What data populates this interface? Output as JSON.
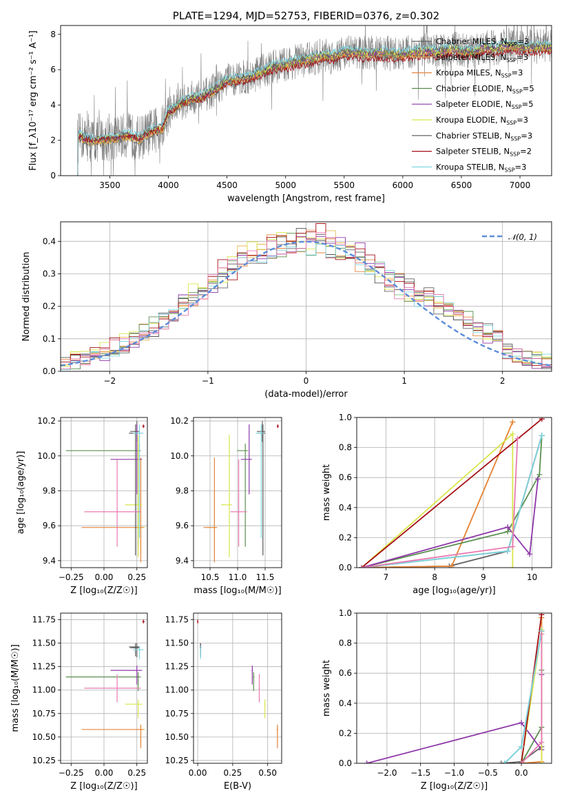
{
  "chart_data": [
    {
      "id": "spectrum",
      "type": "line",
      "title": "PLATE=1294, MJD=52753, FIBERID=0376, z=0.302",
      "xlabel": "wavelength [Angstrom, rest frame]",
      "ylabel": "Flux [f_λ10⁻¹⁷ erg cm⁻² s⁻¹ A⁻¹]",
      "xlim": [
        3080,
        7270
      ],
      "ylim": [
        0,
        8.5
      ],
      "xticks": [
        3500,
        4000,
        4500,
        5000,
        5500,
        6000,
        6500,
        7000
      ],
      "yticks": [
        0,
        2,
        4,
        6,
        8
      ],
      "grid": false,
      "legend_position": "right",
      "data_shape": {
        "wl": [
          3200,
          3230,
          3280,
          3350,
          3450,
          3550,
          3650,
          3750,
          3850,
          3950,
          4000,
          4100,
          4200,
          4300,
          4400,
          4500,
          4600,
          4700,
          4800,
          4900,
          5000,
          5100,
          5200,
          5300,
          5400,
          5500,
          5600,
          5700,
          5800,
          5900,
          6000,
          6100,
          6200,
          6300,
          6400,
          6500,
          6600,
          6700,
          6800,
          6900,
          7000,
          7100,
          7200,
          7270
        ],
        "flux": [
          0,
          2.3,
          2.1,
          2.0,
          2.05,
          2.15,
          2.3,
          2.1,
          2.5,
          2.7,
          3.6,
          4.1,
          4.4,
          4.5,
          4.9,
          5.4,
          5.5,
          5.6,
          5.9,
          6.2,
          6.3,
          6.5,
          6.6,
          6.8,
          6.8,
          7.0,
          7.0,
          6.9,
          7.0,
          6.9,
          6.9,
          7.0,
          7.1,
          7.0,
          7.2,
          7.1,
          7.0,
          7.3,
          7.2,
          7.4,
          7.3,
          7.3,
          7.3,
          7.3
        ]
      },
      "legend": [
        {
          "label": "Chabrier MILES, N",
          "sub": "SSP",
          "tail": "=3",
          "color": "#636363"
        },
        {
          "label": "Salpeter MILES, N",
          "sub": "SSP",
          "tail": "=3",
          "color": "#e7ba52"
        },
        {
          "label": "Kroupa MILES, N",
          "sub": "SSP",
          "tail": "=3",
          "color": "#e6853c"
        },
        {
          "label": "Chabrier ELODIE, N",
          "sub": "SSP",
          "tail": "=5",
          "color": "#5a8f4e"
        },
        {
          "label": "Salpeter ELODIE, N",
          "sub": "SSP",
          "tail": "=5",
          "color": "#8e36a8"
        },
        {
          "label": "Kroupa ELODIE, N",
          "sub": "SSP",
          "tail": "=3",
          "color": "#d8e64a"
        },
        {
          "label": "Chabrier STELIB, N",
          "sub": "SSP",
          "tail": "=3",
          "color": "#555555"
        },
        {
          "label": "Salpeter STELIB, N",
          "sub": "SSP",
          "tail": "=2",
          "color": "#a50f15"
        },
        {
          "label": "Kroupa STELIB, N",
          "sub": "SSP",
          "tail": "=3",
          "color": "#7fd7e0"
        }
      ]
    },
    {
      "id": "residuals",
      "type": "line",
      "xlabel": "(data-model)/error",
      "ylabel": "Normed distribution",
      "xlim": [
        -2.5,
        2.5
      ],
      "ylim": [
        0,
        0.46
      ],
      "xticks": [
        -2,
        -1,
        0,
        1,
        2
      ],
      "yticks": [
        0.0,
        0.1,
        0.2,
        0.3,
        0.4
      ],
      "grid": true,
      "legend_position": "top-right",
      "legend": [
        {
          "label": "𝒩(0, 1)",
          "color": "#5b8bd9",
          "style": "dashed"
        }
      ]
    },
    {
      "id": "age-vs-Z",
      "type": "scatter",
      "xlabel": "Z [log₁₀(Z/Z☉)]",
      "ylabel": "age  [log₁₀(age/yr)]",
      "xlim": [
        -0.33,
        0.33
      ],
      "ylim": [
        9.36,
        10.22
      ],
      "xticks": [
        -0.25,
        0.0,
        0.25
      ],
      "yticks": [
        9.4,
        9.6,
        9.8,
        10.0,
        10.2
      ],
      "grid": true
    },
    {
      "id": "age-vs-mass",
      "type": "scatter",
      "xlabel": "mass [log₁₀(M/M☉)]",
      "xlim": [
        10.2,
        11.8
      ],
      "ylim": [
        9.36,
        10.22
      ],
      "xticks": [
        10.5,
        11.0,
        11.5
      ],
      "yticks": [
        9.4,
        9.6,
        9.8,
        10.0,
        10.2
      ],
      "grid": true
    },
    {
      "id": "weight-vs-age",
      "type": "line",
      "xlabel": "age  [log₁₀(age/yr)]",
      "ylabel": "mass weight",
      "xlim": [
        6.4,
        10.4
      ],
      "ylim": [
        0,
        1.0
      ],
      "xticks": [
        7,
        8,
        9,
        10
      ],
      "yticks": [
        0.0,
        0.2,
        0.4,
        0.6,
        0.8,
        1.0
      ],
      "grid": true
    },
    {
      "id": "mass-vs-Z",
      "type": "scatter",
      "xlabel": "Z [log₁₀(Z/Z☉)]",
      "ylabel": "mass [log₁₀(M/M☉)]",
      "xlim": [
        -0.33,
        0.33
      ],
      "ylim": [
        10.22,
        11.82
      ],
      "xticks": [
        -0.25,
        0.0,
        0.25
      ],
      "yticks": [
        10.25,
        10.5,
        10.75,
        11.0,
        11.25,
        11.5,
        11.75
      ],
      "grid": true
    },
    {
      "id": "mass-vs-EBV",
      "type": "scatter",
      "xlabel": "E(B-V)",
      "xlim": [
        -0.03,
        0.6
      ],
      "ylim": [
        10.22,
        11.82
      ],
      "xticks": [
        0.0,
        0.25,
        0.5
      ],
      "yticks": [
        10.25,
        10.5,
        10.75,
        11.0,
        11.25,
        11.5,
        11.75
      ],
      "grid": true
    },
    {
      "id": "weight-vs-Z",
      "type": "line",
      "xlabel": "Z [log₁₀(Z/Z☉)]",
      "ylabel": "mass weight",
      "xlim": [
        -2.45,
        0.45
      ],
      "ylim": [
        0,
        1.0
      ],
      "xticks": [
        -2.0,
        -1.5,
        -1.0,
        -0.5,
        0.0
      ],
      "yticks": [
        0.0,
        0.2,
        0.4,
        0.6,
        0.8,
        1.0
      ],
      "grid": true
    }
  ],
  "models": [
    {
      "color": "#636363",
      "Z": 0.25,
      "Zerr": [
        0.05,
        0.02
      ],
      "age": 10.14,
      "ageerr": [
        0.06,
        0.06
      ],
      "mass": 11.45,
      "masserr": [
        0.1,
        0.05
      ],
      "ebv": 0.02,
      "ages": [
        6.5,
        8.3,
        9.5,
        10.2
      ],
      "weights": [
        0.0,
        0.01,
        0.11,
        0.88
      ],
      "Zs": [
        -0.3,
        0.0,
        0.3,
        0.3
      ]
    },
    {
      "color": "#e7ba52",
      "Z": 0.28,
      "Zerr": [
        0.05,
        0.03
      ],
      "age": 9.59,
      "ageerr": [
        0.15,
        0.2
      ],
      "mass": 10.58,
      "masserr": [
        0.15,
        0.05
      ],
      "ebv": 0.57,
      "ages": [
        6.5,
        8.35,
        9.6
      ],
      "weights": [
        0.0,
        0.01,
        0.97
      ],
      "Zs": [
        0.0,
        0.3,
        0.3
      ]
    },
    {
      "color": "#e6853c",
      "Z": 0.28,
      "Zerr": [
        0.45,
        0.02
      ],
      "age": 9.59,
      "ageerr": [
        0.2,
        0.4
      ],
      "mass": 10.58,
      "masserr": [
        0.2,
        0.05
      ],
      "ebv": 0.57,
      "ages": [
        6.5,
        8.35,
        9.6
      ],
      "weights": [
        0.0,
        0.01,
        0.97
      ],
      "Zs": [
        0.0,
        0.3,
        0.3
      ]
    },
    {
      "color": "#5a8f4e",
      "Z": 0.26,
      "Zerr": [
        0.55,
        0.02
      ],
      "age": 10.03,
      "ageerr": [
        0.55,
        0.04
      ],
      "mass": 11.14,
      "masserr": [
        0.15,
        0.05
      ],
      "ebv": 0.4,
      "ages": [
        6.5,
        9.5,
        10.15,
        10.2
      ],
      "weights": [
        0.0,
        0.24,
        0.62,
        0.88
      ],
      "Zs": [
        0.0,
        0.3,
        0.3,
        0.3
      ]
    },
    {
      "color": "#8e36a8",
      "Z": 0.25,
      "Zerr": [
        0.2,
        0.04
      ],
      "age": 9.98,
      "ageerr": [
        0.2,
        0.2
      ],
      "mass": 11.21,
      "masserr": [
        0.15,
        0.05
      ],
      "ebv": 0.39,
      "ages": [
        6.5,
        9.5,
        9.95,
        10.12
      ],
      "weights": [
        0.0,
        0.27,
        0.09,
        0.59
      ],
      "Zs": [
        -2.3,
        0.0,
        0.3,
        0.3
      ]
    },
    {
      "color": "#d8e64a",
      "Z": 0.26,
      "Zerr": [
        0.1,
        0.03
      ],
      "age": 9.72,
      "ageerr": [
        0.3,
        0.4
      ],
      "mass": 10.85,
      "masserr": [
        0.15,
        0.05
      ],
      "ebv": 0.48,
      "ages": [
        6.5,
        9.6,
        9.6
      ],
      "weights": [
        0.0,
        0.89,
        0.0
      ],
      "Zs": [
        0.0,
        0.3,
        0.3
      ]
    },
    {
      "color": "#555555",
      "Z": 0.24,
      "Zerr": [
        0.05,
        0.03
      ],
      "age": 10.13,
      "ageerr": [
        0.7,
        0.05
      ],
      "mass": 11.46,
      "masserr": [
        0.1,
        0.04
      ],
      "ebv": 0.02,
      "ages": [
        6.5,
        9.5,
        10.2
      ],
      "weights": [
        0.0,
        0.11,
        0.88
      ],
      "Zs": [
        -0.25,
        0.0,
        0.3
      ]
    },
    {
      "color": "#a50f15",
      "Z": 0.3,
      "Zerr": [
        0.01,
        0.01
      ],
      "age": 10.17,
      "ageerr": [
        0.01,
        0.01
      ],
      "mass": 11.73,
      "masserr": [
        0.02,
        0.02
      ],
      "ebv": 0.0,
      "ages": [
        6.5,
        10.2
      ],
      "weights": [
        0.0,
        0.99
      ],
      "Zs": [
        0.0,
        0.3
      ]
    },
    {
      "color": "#7fd7e0",
      "Z": 0.27,
      "Zerr": [
        0.05,
        0.03
      ],
      "age": 10.13,
      "ageerr": [
        0.6,
        0.05
      ],
      "mass": 11.43,
      "masserr": [
        0.1,
        0.04
      ],
      "ebv": 0.02,
      "ages": [
        6.5,
        9.5,
        10.2
      ],
      "weights": [
        0.0,
        0.11,
        0.88
      ],
      "Zs": [
        -0.25,
        0.0,
        0.3
      ]
    },
    {
      "color": "#e879b1",
      "Z": 0.1,
      "Zerr": [
        0.25,
        0.18
      ],
      "age": 9.68,
      "ageerr": [
        0.2,
        0.3
      ],
      "mass": 11.02,
      "masserr": [
        0.15,
        0.15
      ],
      "ebv": 0.44,
      "ages": [
        6.5,
        9.6,
        9.7
      ],
      "weights": [
        0.0,
        0.14,
        0.86
      ],
      "Zs": [
        0.0,
        0.3,
        0.3
      ]
    }
  ]
}
